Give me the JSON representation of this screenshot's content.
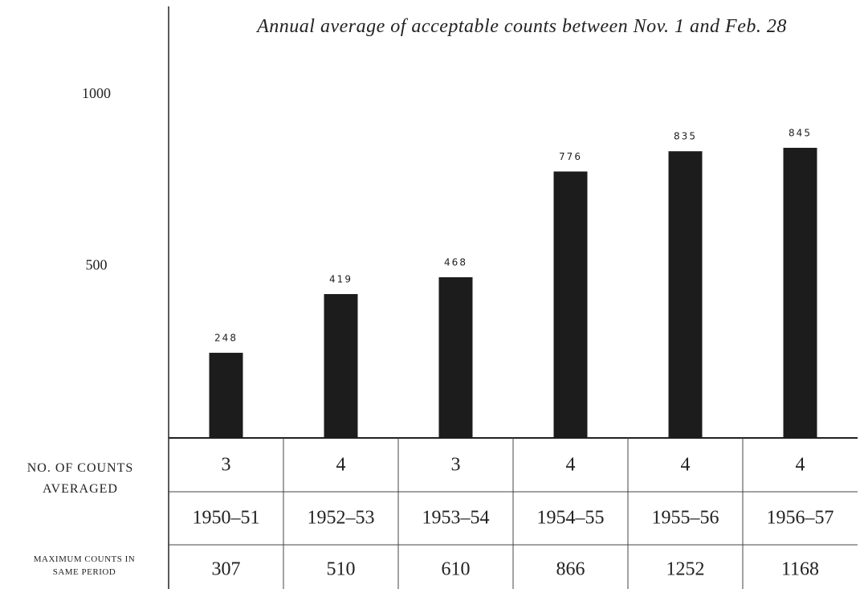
{
  "chart_data": {
    "type": "bar",
    "title": "Annual average of acceptable counts between Nov. 1 and Feb. 28",
    "categories": [
      "1950–51",
      "1952–53",
      "1953–54",
      "1954–55",
      "1955–56",
      "1956–57"
    ],
    "values": [
      248,
      419,
      468,
      776,
      835,
      845
    ],
    "color": "#1c1c1c",
    "ylim": [
      0,
      1100
    ],
    "yticks": [
      500,
      1000
    ],
    "grid": false
  },
  "table": {
    "rows": [
      {
        "label": "NO. OF COUNTS AVERAGED",
        "values": [
          3,
          4,
          3,
          4,
          4,
          4
        ]
      },
      {
        "label": "MAXIMUM COUNTS IN SAME PERIOD",
        "values": [
          307,
          510,
          610,
          866,
          1252,
          1168
        ]
      }
    ]
  }
}
